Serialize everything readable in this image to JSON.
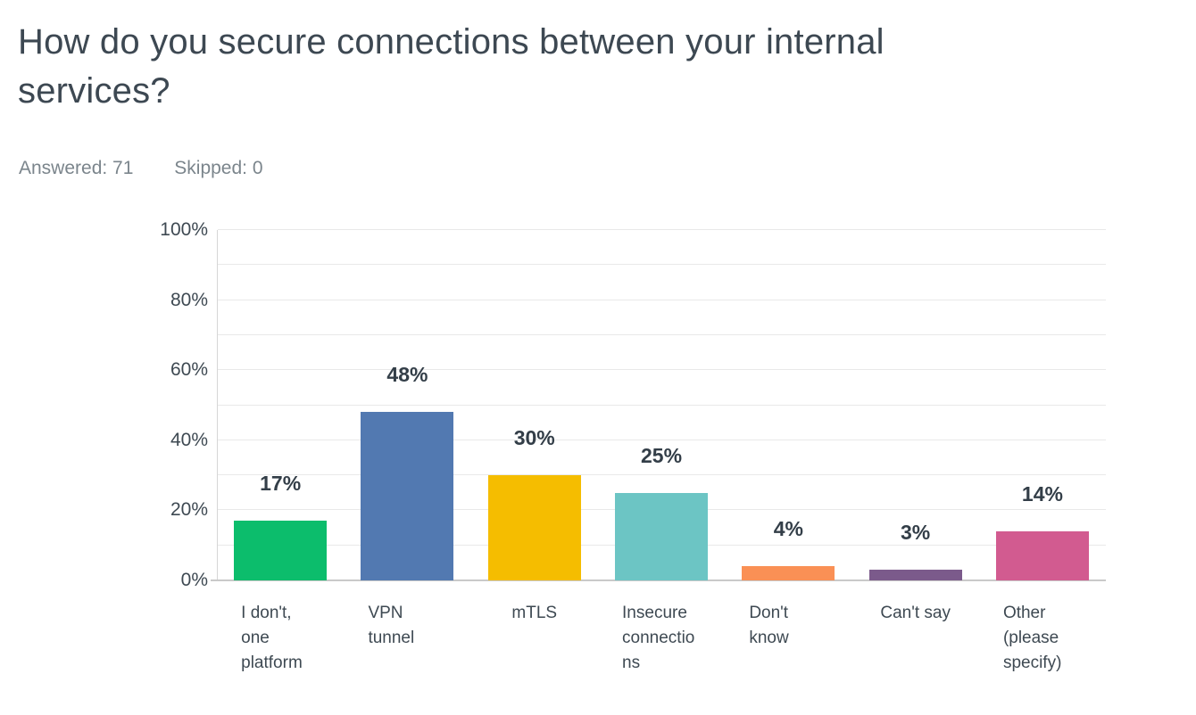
{
  "header": {
    "title": "How do you secure connections between your internal services?",
    "answered": "Answered: 71",
    "skipped": "Skipped: 0"
  },
  "chart_data": {
    "type": "bar",
    "title": "How do you secure connections between your internal services?",
    "answered_count": 71,
    "skipped_count": 0,
    "categories": [
      "I don't, one platform",
      "VPN tunnel",
      "mTLS",
      "Insecure connections",
      "Don't know",
      "Can't say",
      "Other (please specify)"
    ],
    "values": [
      17,
      48,
      30,
      25,
      4,
      3,
      14
    ],
    "value_labels": [
      "17%",
      "48%",
      "30%",
      "25%",
      "4%",
      "3%",
      "14%"
    ],
    "bar_colors": [
      "#0cbd6c",
      "#5279b1",
      "#f5bd00",
      "#6cc5c4",
      "#fa9055",
      "#7b5a8b",
      "#d25b90"
    ],
    "y_ticks": [
      "0%",
      "20%",
      "40%",
      "60%",
      "80%",
      "100%"
    ],
    "ylim": [
      0,
      100
    ],
    "xlabel": "",
    "ylabel": "",
    "grid": {
      "orientation": "horizontal",
      "interval_percent": 10,
      "color": "#e9e9e9"
    },
    "legend": "none",
    "text_colors": {
      "title": "#3d4852",
      "stats": "#7b858c",
      "axis_labels": "#3e4952",
      "value_labels": "#333e48"
    }
  }
}
